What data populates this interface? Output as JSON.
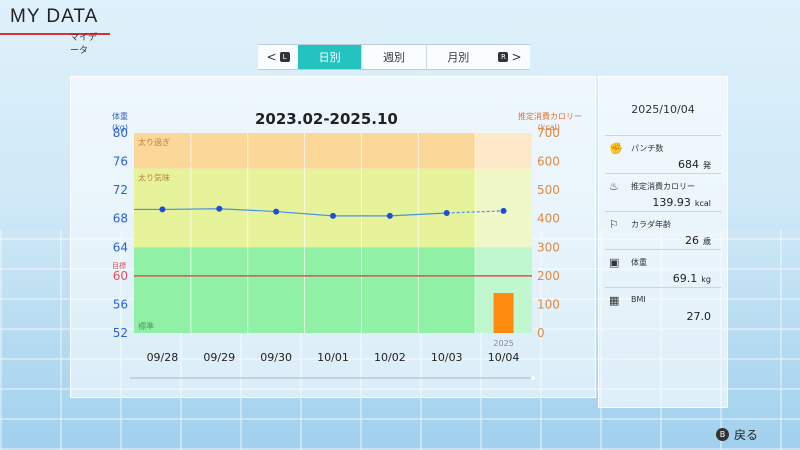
{
  "header": {
    "title": "MY DATA",
    "subtitle": "マイデータ"
  },
  "tabs": {
    "prev_key": "L",
    "next_key": "R",
    "items": [
      {
        "label": "日別",
        "active": true
      },
      {
        "label": "週別",
        "active": false
      },
      {
        "label": "月別",
        "active": false
      }
    ]
  },
  "chart_data": {
    "type": "line",
    "title": "2023.02-2025.10",
    "categories": [
      "09/28",
      "09/29",
      "09/30",
      "10/01",
      "10/02",
      "10/03",
      "10/04"
    ],
    "year_label": "2025",
    "left_axis": {
      "label": "体重",
      "unit": "(kg)",
      "ticks": [
        80,
        76,
        72,
        68,
        64,
        60,
        56,
        52
      ],
      "ylim": [
        52,
        80
      ]
    },
    "right_axis": {
      "label": "推定消費カロリー",
      "unit": "(kcal)",
      "ticks": [
        700,
        600,
        500,
        400,
        300,
        200,
        100,
        0
      ],
      "ylim": [
        0,
        700
      ]
    },
    "zones": [
      {
        "label": "太り過ぎ",
        "from": 75,
        "to": 80,
        "color": "#fbd79a"
      },
      {
        "label": "太り気味",
        "from": 64,
        "to": 75,
        "color": "#e6f39a"
      },
      {
        "label": "標準",
        "from": 52,
        "to": 64,
        "color": "#8ff0a6"
      }
    ],
    "target": {
      "label": "目標",
      "value": 60,
      "color": "#e0505a"
    },
    "series": [
      {
        "axis": "left",
        "values": [
          69.3,
          69.4,
          69.0,
          68.4,
          68.4,
          68.8,
          69.1
        ],
        "color": "#2a63d6"
      },
      {
        "axis": "right",
        "type": "bar",
        "values": [
          null,
          null,
          null,
          null,
          null,
          null,
          139.93
        ],
        "color": "#ff8a10"
      }
    ]
  },
  "side": {
    "date": "2025/10/04",
    "items": [
      {
        "icon": "glove-icon",
        "label": "パンチ数",
        "value": "684",
        "unit": "発"
      },
      {
        "icon": "flame-icon",
        "label": "推定消費カロリー",
        "value": "139.93",
        "unit": "kcal"
      },
      {
        "icon": "muscle-icon",
        "label": "カラダ年齢",
        "value": "26",
        "unit": "歳"
      },
      {
        "icon": "scale-icon",
        "label": "体重",
        "value": "69.1",
        "unit": "kg"
      },
      {
        "icon": "calculator-icon",
        "label": "BMI",
        "value": "27.0",
        "unit": ""
      }
    ]
  },
  "footer": {
    "back_key": "B",
    "back_label": "戻る"
  }
}
